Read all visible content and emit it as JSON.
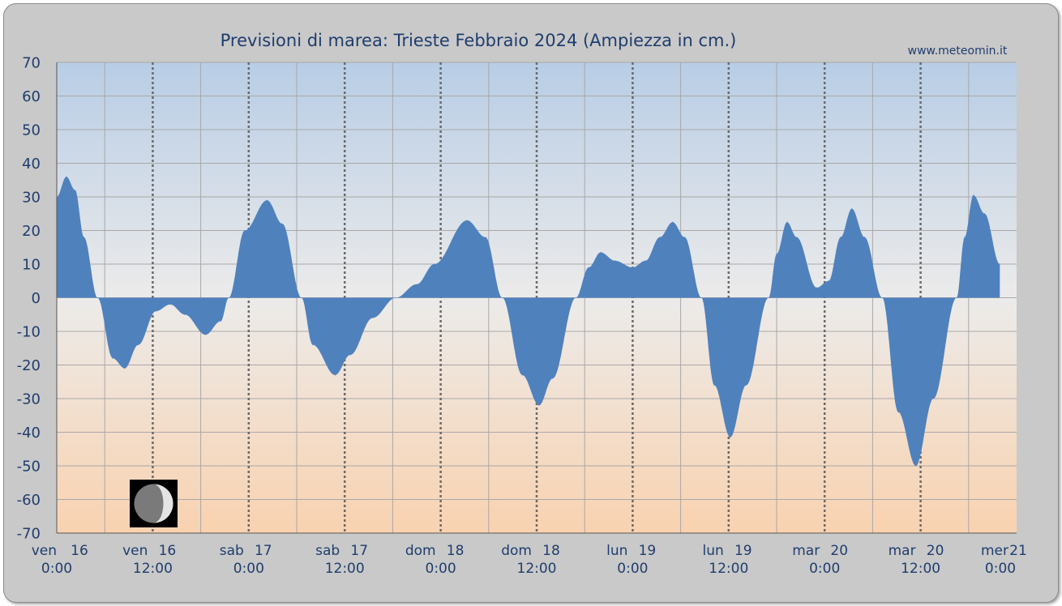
{
  "chart_data": {
    "type": "area",
    "title": "Previsioni di marea: Trieste Febbraio 2024 (Ampiezza in cm.)",
    "source": "www.meteomin.it",
    "xlabel": "",
    "ylabel": "",
    "ylim": [
      -70,
      70
    ],
    "yticks": [
      70,
      60,
      50,
      40,
      30,
      20,
      10,
      0,
      -10,
      -20,
      -30,
      -40,
      -50,
      -60,
      -70
    ],
    "ytick_labels": [
      "70",
      "60",
      "50",
      "40",
      "30",
      "20",
      "10",
      "0",
      "-10",
      "-20",
      "-30",
      "-40",
      "-50",
      "-60",
      "-70"
    ],
    "xlim_hours": [
      0,
      120
    ],
    "x_unit": "hours from ven 16 0:00",
    "xticks": [
      {
        "day": "ven",
        "date": "16",
        "time": "0:00",
        "hour": 0
      },
      {
        "day": "ven",
        "date": "16",
        "time": "12:00",
        "hour": 12
      },
      {
        "day": "sab",
        "date": "17",
        "time": "0:00",
        "hour": 24
      },
      {
        "day": "sab",
        "date": "17",
        "time": "12:00",
        "hour": 36
      },
      {
        "day": "dom",
        "date": "18",
        "time": "0:00",
        "hour": 48
      },
      {
        "day": "dom",
        "date": "18",
        "time": "12:00",
        "hour": 60
      },
      {
        "day": "lun",
        "date": "19",
        "time": "0:00",
        "hour": 72
      },
      {
        "day": "lun",
        "date": "19",
        "time": "12:00",
        "hour": 84
      },
      {
        "day": "mar",
        "date": "20",
        "time": "0:00",
        "hour": 96
      },
      {
        "day": "mar",
        "date": "20",
        "time": "12:00",
        "hour": 108
      },
      {
        "day": "mer",
        "date": "21",
        "time": "0:00",
        "hour": 120
      }
    ],
    "series": [
      {
        "color": "#4f81bd",
        "points": [
          [
            0,
            30
          ],
          [
            1.2,
            36
          ],
          [
            2.3,
            32
          ],
          [
            3.4,
            18
          ],
          [
            5.1,
            0
          ],
          [
            7.0,
            -18
          ],
          [
            8.5,
            -21
          ],
          [
            10.2,
            -14
          ],
          [
            12.4,
            -4
          ],
          [
            14.2,
            -2
          ],
          [
            16.0,
            -5
          ],
          [
            18.6,
            -11
          ],
          [
            20.5,
            -7
          ],
          [
            21.5,
            0
          ],
          [
            23.5,
            20
          ],
          [
            26.3,
            29
          ],
          [
            28.2,
            22
          ],
          [
            30.6,
            0
          ],
          [
            32.0,
            -14
          ],
          [
            34.8,
            -23
          ],
          [
            36.7,
            -17
          ],
          [
            39.5,
            -6
          ],
          [
            42.4,
            0
          ],
          [
            45.0,
            4
          ],
          [
            47.2,
            10
          ],
          [
            51.3,
            23
          ],
          [
            53.6,
            18
          ],
          [
            55.7,
            0
          ],
          [
            58.2,
            -23
          ],
          [
            60.3,
            -32
          ],
          [
            62.0,
            -24
          ],
          [
            64.9,
            0
          ],
          [
            66.5,
            9
          ],
          [
            68.0,
            13.5
          ],
          [
            69.8,
            11
          ],
          [
            72.0,
            9
          ],
          [
            73.6,
            11
          ],
          [
            75.4,
            18
          ],
          [
            77.0,
            22.5
          ],
          [
            78.5,
            18
          ],
          [
            80.6,
            0
          ],
          [
            82.2,
            -26
          ],
          [
            84.2,
            -41.5
          ],
          [
            86.2,
            -26
          ],
          [
            89.0,
            0
          ],
          [
            90.0,
            13
          ],
          [
            91.3,
            22.5
          ],
          [
            92.5,
            18
          ],
          [
            95.0,
            3
          ],
          [
            96.5,
            5
          ],
          [
            98.0,
            18
          ],
          [
            99.4,
            26.5
          ],
          [
            101.0,
            18
          ],
          [
            103.2,
            0
          ],
          [
            105.2,
            -34
          ],
          [
            107.4,
            -50
          ],
          [
            109.6,
            -30
          ],
          [
            112.5,
            0
          ],
          [
            113.5,
            18
          ],
          [
            114.6,
            30.5
          ],
          [
            116.0,
            25
          ],
          [
            117.9,
            10
          ]
        ]
      }
    ],
    "colors": {
      "fill": "#4f81bd",
      "frame": "#c9c9c9",
      "text": "#1f3d6e",
      "bg_top": "#b8cde6",
      "bg_mid": "#ecebea",
      "bg_bottom": "#f9d2b0",
      "grid": "#a8a8a8",
      "day_grid": "#6a6a6a"
    },
    "moon_icon": "waning-crescent-moon-icon"
  }
}
